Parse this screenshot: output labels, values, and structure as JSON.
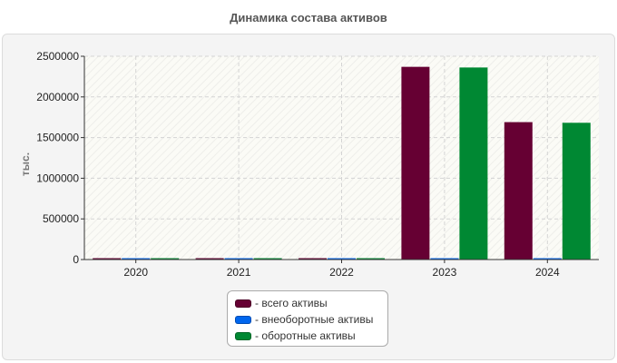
{
  "chart_data": {
    "type": "bar",
    "title": "Динамика состава активов",
    "ylabel": "тыс.",
    "xlabel": "",
    "categories": [
      "2020",
      "2021",
      "2022",
      "2023",
      "2024"
    ],
    "ylim": [
      0,
      2500000
    ],
    "yticks": [
      0,
      500000,
      1000000,
      1500000,
      2000000,
      2500000
    ],
    "grid": true,
    "legend_position": "bottom",
    "series": [
      {
        "name": "- всего активы",
        "color": "#660033",
        "values": [
          12000,
          12000,
          12000,
          2370000,
          1690000
        ]
      },
      {
        "name": "- внеоборотные активы",
        "color": "#0066ee",
        "values": [
          4000,
          4000,
          4000,
          8000,
          8000
        ]
      },
      {
        "name": "- оборотные активы",
        "color": "#008833",
        "values": [
          8000,
          8000,
          8000,
          2362000,
          1682000
        ]
      }
    ]
  }
}
